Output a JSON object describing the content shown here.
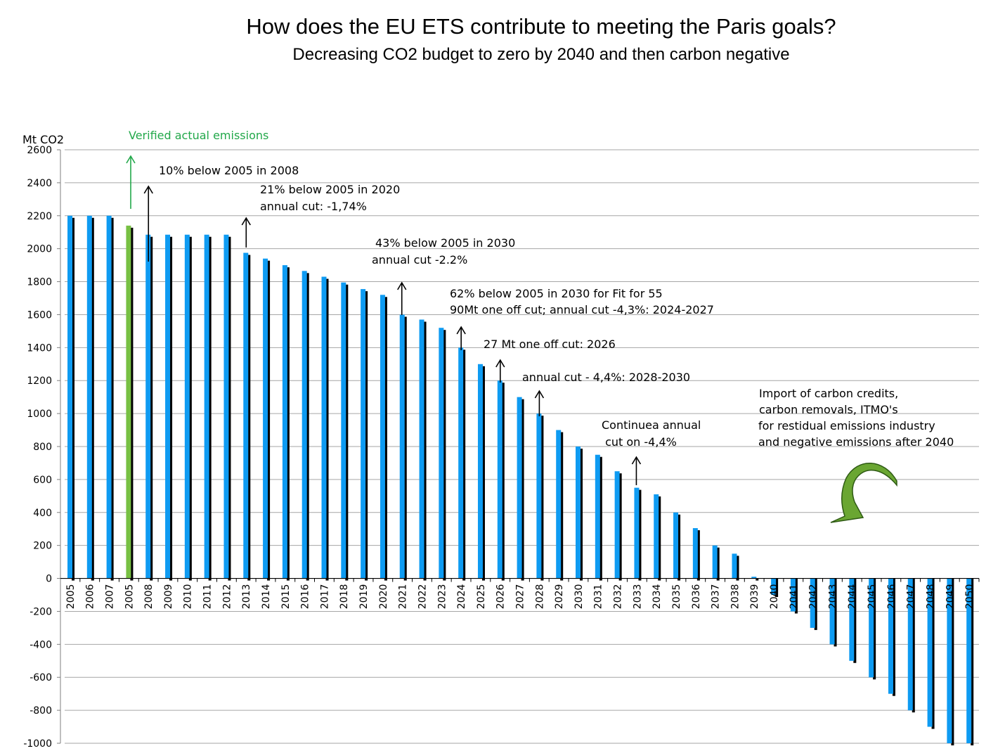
{
  "chart_data": {
    "type": "bar",
    "title": "How does the EU ETS contribute to meeting the Paris goals?",
    "subtitle": "Decreasing CO2 budget to zero by 2040 and then carbon negative",
    "ylabel": "Mt CO2",
    "ylim": [
      -1000,
      2600
    ],
    "yticks": [
      2600,
      2400,
      2200,
      2000,
      1800,
      1600,
      1400,
      1200,
      1000,
      800,
      600,
      400,
      200,
      0,
      -200,
      -400,
      -600,
      -800,
      -1000
    ],
    "grid": true,
    "categories": [
      "2005",
      "2006",
      "2007",
      "2005",
      "2008",
      "2009",
      "2010",
      "2011",
      "2012",
      "2013",
      "2014",
      "2015",
      "2016",
      "2017",
      "2018",
      "2019",
      "2020",
      "2021",
      "2022",
      "2023",
      "2024",
      "2025",
      "2026",
      "2027",
      "2028",
      "2029",
      "2030",
      "2031",
      "2032",
      "2033",
      "2034",
      "2035",
      "2036",
      "2037",
      "2038",
      "2039",
      "2040",
      "2041",
      "2042",
      "2043",
      "2044",
      "2045",
      "2046",
      "2047",
      "2048",
      "2049",
      "2050"
    ],
    "values": [
      2200,
      2200,
      2200,
      2140,
      2085,
      2085,
      2085,
      2085,
      2085,
      1975,
      1940,
      1900,
      1865,
      1830,
      1795,
      1755,
      1720,
      1600,
      1570,
      1520,
      1400,
      1300,
      1200,
      1100,
      1000,
      900,
      800,
      750,
      650,
      550,
      510,
      400,
      305,
      200,
      150,
      10,
      -100,
      -200,
      -300,
      -400,
      -500,
      -600,
      -700,
      -800,
      -900,
      -1000,
      -1000
    ],
    "highlight_index": 3,
    "colors": {
      "bar": "#0e9bf2",
      "shadow": "#000000",
      "highlight": "#77c043",
      "grid": "#a6a6a6",
      "green_text": "#22a84a",
      "arrow_curve": "#6aa632"
    },
    "legend_text": "Verified actual emissions",
    "annotations": [
      {
        "id": "a2008",
        "lines": [
          "10% below 2005 in 2008"
        ]
      },
      {
        "id": "a2020",
        "lines": [
          "21% below 2005 in 2020",
          "annual cut: -1,74%"
        ]
      },
      {
        "id": "a2030",
        "lines": [
          "43% below 2005 in 2030",
          "annual cut  -2.2%"
        ]
      },
      {
        "id": "afit55",
        "lines": [
          "62% below 2005 in 2030 for Fit for 55",
          "90Mt one off cut; annual cut -4,3%: 2024-2027"
        ]
      },
      {
        "id": "a2026",
        "lines": [
          "27 Mt one off cut: 2026"
        ]
      },
      {
        "id": "a2028",
        "lines": [
          "annual cut - 4,4%:  2028-2030"
        ]
      },
      {
        "id": "acont",
        "lines": [
          "Continuea annual",
          " cut on -4,4%"
        ]
      },
      {
        "id": "aimport",
        "lines": [
          "Import of carbon credits,",
          "carbon removals, ITMO's",
          "for restidual emissions industry",
          "and negative emissions after 2040"
        ]
      }
    ]
  }
}
